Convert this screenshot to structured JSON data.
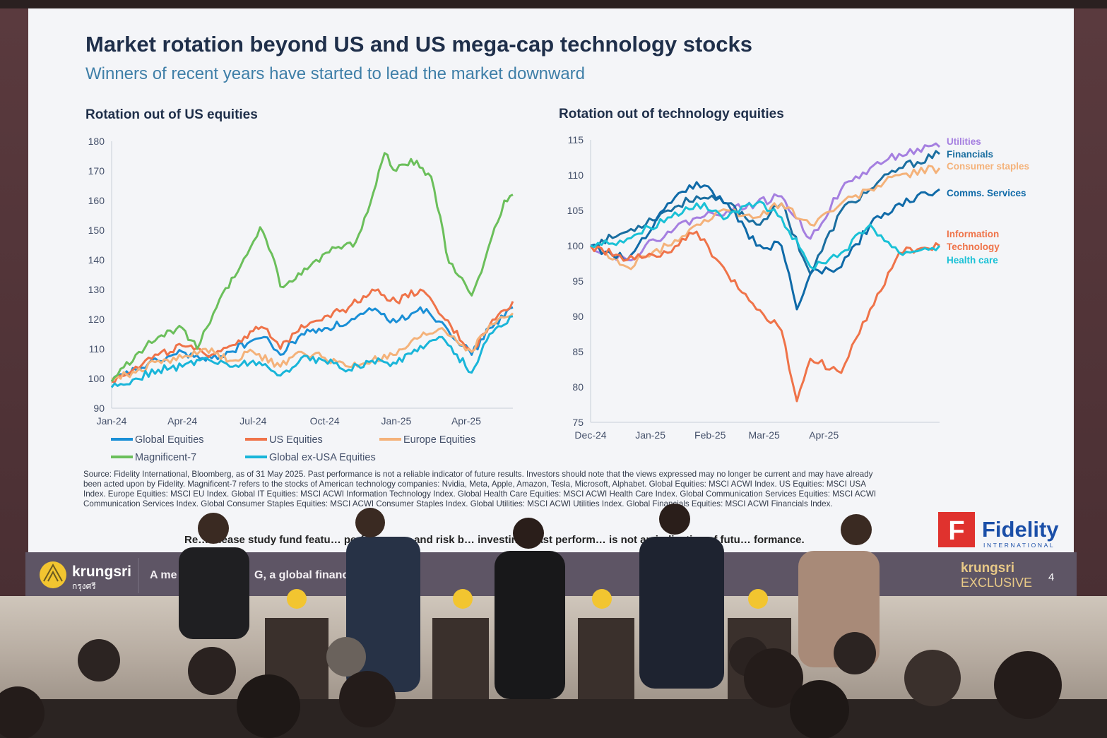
{
  "slide": {
    "title": "Market rotation beyond US and US mega-cap technology stocks",
    "subtitle": "Winners of recent years have started to lead the market downward",
    "source_note_lines": [
      "Source: Fidelity International, Bloomberg, as of 31 May 2025. Past performance is not a reliable indicator of future results. Investors should note that the views expressed may no longer be current and may have already",
      "been acted upon by Fidelity. Magnificent-7 refers to the stocks of American technology companies: Nvidia, Meta, Apple, Amazon, Tesla, Microsoft, Alphabet. Global Equities: MSCI ACWI Index. US Equities: MSCI USA",
      "Index. Europe Equities: MSCI EU Index. Global IT Equities: MSCI ACWI Information Technology Index. Global Health Care Equities: MSCI ACWI Health Care Index. Global Communication Services Equities: MSCI ACWI",
      "Communication Services Index. Global Consumer Staples Equities: MSCI ACWI Consumer Staples Index. Global Utilities: MSCI ACWI Utilities Index. Global Financials Equities: MSCI ACWI Financials Index."
    ],
    "reminder": "Re… Please study fund featu… performance, and risk b… investing. Past perform… is not an indicative of futu… formance.",
    "fidelity_logo_text": "Fidelity",
    "fidelity_logo_sub": "INTERNATIONAL",
    "fidelity_logo_mark": "F",
    "page_number": "4"
  },
  "brand_bar": {
    "krungsri_logo": "krungsri",
    "krungsri_thai": "กรุงศรี",
    "tagline_fragment_1": "A me",
    "tagline_fragment_2": "G, a global financ",
    "exclusive_brand": "krungsri",
    "exclusive_word": "EXCLUSIVE"
  },
  "colors": {
    "global_equities": "#1a8fd6",
    "us_equities": "#ef7349",
    "europe_equities": "#f4b27a",
    "magnificent_7": "#6bbf5b",
    "global_ex_usa": "#19b5d9",
    "utilities": "#a57fe0",
    "financials": "#1a6ea0",
    "consumer_staples": "#f4b27a",
    "comms_services": "#0f6aa8",
    "information_technology": "#ef7349",
    "health_care": "#19c1d6",
    "title": "#1f2f4a",
    "subtitle": "#3f7fa8",
    "fidelity_red": "#e0322e",
    "fidelity_blue": "#1b4fa8"
  },
  "chart_data": [
    {
      "type": "line",
      "title": "Rotation out of US equities",
      "xlabel": "",
      "ylabel": "",
      "ylim": [
        90,
        180
      ],
      "yticks": [
        90,
        100,
        110,
        120,
        130,
        140,
        150,
        160,
        170,
        180
      ],
      "xticks": [
        "Jan-24",
        "Apr-24",
        "Jul-24",
        "Oct-24",
        "Jan-25",
        "Apr-25"
      ],
      "xlim": [
        "2024-01-01",
        "2025-05-31"
      ],
      "grid": false,
      "legend_position": "bottom",
      "series": [
        {
          "name": "Global Equities",
          "color": "#1a8fd6",
          "x": [
            "2024-01-01",
            "2024-02-01",
            "2024-03-01",
            "2024-04-01",
            "2024-05-01",
            "2024-06-01",
            "2024-07-01",
            "2024-07-15",
            "2024-08-05",
            "2024-09-01",
            "2024-10-01",
            "2024-11-01",
            "2024-12-01",
            "2025-01-01",
            "2025-02-01",
            "2025-03-01",
            "2025-04-08",
            "2025-05-01",
            "2025-05-31"
          ],
          "y": [
            99,
            103,
            106,
            109,
            106,
            109,
            113,
            114,
            108,
            115,
            117,
            119,
            123,
            119,
            124,
            119,
            108,
            117,
            124
          ]
        },
        {
          "name": "US Equities",
          "color": "#ef7349",
          "x": [
            "2024-01-01",
            "2024-02-01",
            "2024-03-01",
            "2024-04-01",
            "2024-05-01",
            "2024-06-01",
            "2024-07-01",
            "2024-07-15",
            "2024-08-05",
            "2024-09-01",
            "2024-10-01",
            "2024-11-01",
            "2024-12-01",
            "2025-01-01",
            "2025-02-01",
            "2025-03-01",
            "2025-04-08",
            "2025-05-01",
            "2025-05-31"
          ],
          "y": [
            99,
            104,
            108,
            111,
            108,
            111,
            116,
            117,
            110,
            118,
            121,
            124,
            130,
            126,
            130,
            121,
            109,
            118,
            126
          ]
        },
        {
          "name": "Europe Equities",
          "color": "#f4b27a",
          "x": [
            "2024-01-01",
            "2024-02-01",
            "2024-03-01",
            "2024-04-01",
            "2024-05-01",
            "2024-06-01",
            "2024-07-01",
            "2024-08-05",
            "2024-09-01",
            "2024-10-01",
            "2024-11-01",
            "2024-12-01",
            "2025-01-01",
            "2025-02-01",
            "2025-03-01",
            "2025-04-08",
            "2025-05-01",
            "2025-05-31"
          ],
          "y": [
            100,
            102,
            106,
            107,
            110,
            106,
            109,
            104,
            109,
            107,
            104,
            106,
            108,
            114,
            117,
            109,
            118,
            122
          ]
        },
        {
          "name": "Magnificent-7",
          "color": "#6bbf5b",
          "x": [
            "2024-01-01",
            "2024-02-01",
            "2024-03-01",
            "2024-04-01",
            "2024-04-20",
            "2024-05-15",
            "2024-06-15",
            "2024-07-10",
            "2024-07-25",
            "2024-08-05",
            "2024-09-01",
            "2024-09-20",
            "2024-10-15",
            "2024-11-10",
            "2024-11-25",
            "2024-12-17",
            "2025-01-01",
            "2025-01-20",
            "2025-02-15",
            "2025-03-10",
            "2025-04-08",
            "2025-04-25",
            "2025-05-20",
            "2025-05-31"
          ],
          "y": [
            99,
            108,
            114,
            117,
            110,
            124,
            138,
            151,
            142,
            131,
            135,
            140,
            144,
            146,
            156,
            176,
            170,
            174,
            168,
            139,
            128,
            140,
            160,
            162
          ]
        },
        {
          "name": "Global ex-USA Equities",
          "color": "#19b5d9",
          "x": [
            "2024-01-01",
            "2024-02-01",
            "2024-03-01",
            "2024-04-01",
            "2024-05-01",
            "2024-06-01",
            "2024-07-01",
            "2024-08-05",
            "2024-09-01",
            "2024-10-01",
            "2024-11-01",
            "2024-12-01",
            "2025-01-01",
            "2025-02-01",
            "2025-03-01",
            "2025-04-08",
            "2025-05-01",
            "2025-05-31"
          ],
          "y": [
            97,
            100,
            103,
            104,
            107,
            104,
            106,
            101,
            107,
            106,
            103,
            106,
            105,
            111,
            114,
            102,
            115,
            121
          ]
        }
      ]
    },
    {
      "type": "line",
      "title": "Rotation out of technology equities",
      "xlabel": "",
      "ylabel": "",
      "ylim": [
        75,
        115
      ],
      "yticks": [
        75,
        80,
        85,
        90,
        95,
        100,
        105,
        110,
        115
      ],
      "xticks": [
        "Dec-24",
        "Jan-25",
        "Feb-25",
        "Mar-25",
        "Apr-25"
      ],
      "xlim": [
        "2024-12-01",
        "2025-05-31"
      ],
      "grid": false,
      "legend_position": "right (end-of-line labels)",
      "series": [
        {
          "name": "Utilities",
          "color": "#a57fe0",
          "x": [
            "2024-12-01",
            "2024-12-20",
            "2025-01-10",
            "2025-01-25",
            "2025-02-10",
            "2025-02-25",
            "2025-03-10",
            "2025-03-25",
            "2025-04-10",
            "2025-04-25",
            "2025-05-10",
            "2025-05-31"
          ],
          "y": [
            100,
            98,
            102,
            104,
            105,
            106,
            107,
            101,
            108,
            111,
            113,
            114
          ]
        },
        {
          "name": "Financials",
          "color": "#1a6ea0",
          "x": [
            "2024-12-01",
            "2024-12-20",
            "2025-01-10",
            "2025-01-25",
            "2025-02-10",
            "2025-02-25",
            "2025-03-10",
            "2025-03-25",
            "2025-04-10",
            "2025-04-25",
            "2025-05-10",
            "2025-05-31"
          ],
          "y": [
            100,
            102,
            105,
            107,
            106,
            103,
            106,
            96,
            105,
            108,
            111,
            113
          ]
        },
        {
          "name": "Consumer staples",
          "color": "#f4b27a",
          "x": [
            "2024-12-01",
            "2024-12-20",
            "2025-01-10",
            "2025-01-25",
            "2025-02-10",
            "2025-02-25",
            "2025-03-10",
            "2025-03-25",
            "2025-04-10",
            "2025-04-25",
            "2025-05-10",
            "2025-05-31"
          ],
          "y": [
            100,
            97,
            100,
            103,
            105,
            104,
            106,
            103,
            106,
            108,
            110,
            111
          ]
        },
        {
          "name": "Comms. Services",
          "color": "#0f6aa8",
          "x": [
            "2024-12-01",
            "2024-12-20",
            "2025-01-10",
            "2025-01-25",
            "2025-02-10",
            "2025-02-25",
            "2025-03-10",
            "2025-03-18",
            "2025-03-25",
            "2025-04-10",
            "2025-04-25",
            "2025-05-10",
            "2025-05-31"
          ],
          "y": [
            100,
            98,
            106,
            109,
            106,
            100,
            100,
            91,
            96,
            97,
            103,
            106,
            108
          ]
        },
        {
          "name": "Information Technology",
          "color": "#ef7349",
          "x": [
            "2024-12-01",
            "2024-12-20",
            "2025-01-10",
            "2025-01-25",
            "2025-02-10",
            "2025-02-25",
            "2025-03-10",
            "2025-03-18",
            "2025-03-25",
            "2025-04-10",
            "2025-04-25",
            "2025-05-10",
            "2025-05-31"
          ],
          "y": [
            100,
            98,
            99,
            102,
            96,
            91,
            88,
            78,
            84,
            82,
            91,
            99,
            100
          ]
        },
        {
          "name": "Health care",
          "color": "#19c1d6",
          "x": [
            "2024-12-01",
            "2024-12-20",
            "2025-01-10",
            "2025-01-25",
            "2025-02-10",
            "2025-02-25",
            "2025-03-10",
            "2025-03-25",
            "2025-04-10",
            "2025-04-25",
            "2025-05-10",
            "2025-05-31"
          ],
          "y": [
            100,
            101,
            104,
            106,
            104,
            106,
            104,
            97,
            99,
            103,
            99,
            100
          ]
        }
      ]
    }
  ]
}
